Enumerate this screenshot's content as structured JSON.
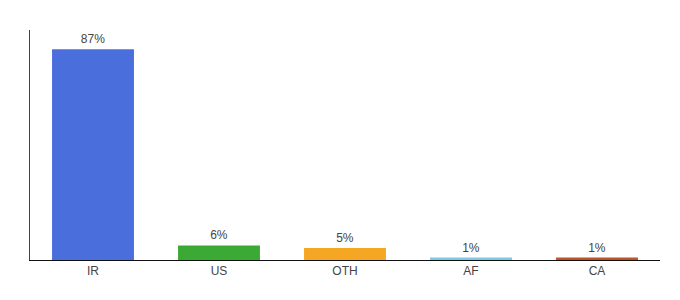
{
  "chart_data": {
    "type": "bar",
    "categories": [
      "IR",
      "US",
      "OTH",
      "AF",
      "CA"
    ],
    "values": [
      87,
      6,
      5,
      1,
      1
    ],
    "value_labels": [
      "87%",
      "6%",
      "5%",
      "1%",
      "1%"
    ],
    "colors": [
      "#4a6fdc",
      "#3aaa35",
      "#f5a623",
      "#7ec8e3",
      "#c0522a"
    ],
    "ylim": [
      0,
      95
    ],
    "data_labels": true,
    "grid": false,
    "tick_labels": "x"
  }
}
